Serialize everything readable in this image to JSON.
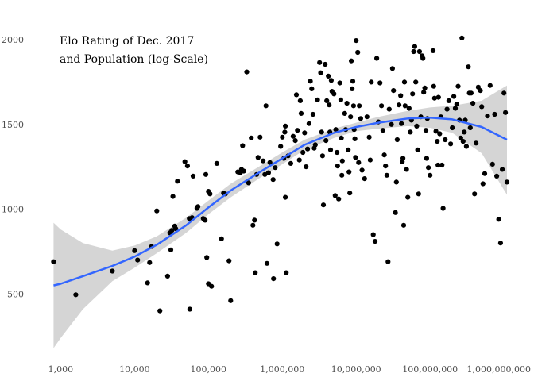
{
  "chart_data": {
    "type": "scatter",
    "title_lines": [
      "Elo Rating of Dec. 2017",
      "and Population (log-Scale)"
    ],
    "xlabel": "",
    "ylabel": "",
    "x_scale": "log10",
    "xlim": [
      700,
      1100000000
    ],
    "ylim": [
      150,
      2150
    ],
    "x_ticks": [
      1000,
      10000,
      100000,
      1000000,
      10000000,
      100000000,
      1000000000
    ],
    "x_tick_labels": [
      "1,000",
      "10,000",
      "100,000",
      "1,000,000",
      "10,000,000",
      "100,000,000",
      "1,000,000,000"
    ],
    "y_ticks": [
      500,
      1000,
      1500,
      2000
    ],
    "y_tick_labels": [
      "500",
      "1000",
      "1500",
      "2000"
    ],
    "grid": false,
    "point_color": "#000000",
    "smooth_color": "#3366ff",
    "band_color": "#bfbfbf",
    "points": [
      [
        800,
        690
      ],
      [
        1600,
        495
      ],
      [
        5000,
        635
      ],
      [
        10000,
        755
      ],
      [
        11000,
        700
      ],
      [
        15000,
        565
      ],
      [
        16000,
        685
      ],
      [
        17000,
        780
      ],
      [
        20000,
        990
      ],
      [
        22000,
        400
      ],
      [
        28000,
        605
      ],
      [
        30000,
        860
      ],
      [
        31000,
        760
      ],
      [
        32000,
        875
      ],
      [
        33000,
        1075
      ],
      [
        35000,
        900
      ],
      [
        36000,
        885
      ],
      [
        38000,
        1165
      ],
      [
        48000,
        1280
      ],
      [
        52000,
        1255
      ],
      [
        55000,
        945
      ],
      [
        56000,
        410
      ],
      [
        60000,
        950
      ],
      [
        62000,
        1195
      ],
      [
        70000,
        1005
      ],
      [
        72000,
        1015
      ],
      [
        85000,
        945
      ],
      [
        90000,
        935
      ],
      [
        92000,
        1205
      ],
      [
        95000,
        715
      ],
      [
        100000,
        1105
      ],
      [
        100000,
        560
      ],
      [
        105000,
        1090
      ],
      [
        110000,
        545
      ],
      [
        130000,
        1270
      ],
      [
        150000,
        825
      ],
      [
        160000,
        1095
      ],
      [
        170000,
        1090
      ],
      [
        190000,
        695
      ],
      [
        200000,
        460
      ],
      [
        250000,
        1220
      ],
      [
        270000,
        1215
      ],
      [
        280000,
        1235
      ],
      [
        290000,
        1375
      ],
      [
        300000,
        1225
      ],
      [
        330000,
        1810
      ],
      [
        350000,
        1155
      ],
      [
        380000,
        1420
      ],
      [
        400000,
        905
      ],
      [
        420000,
        935
      ],
      [
        430000,
        625
      ],
      [
        450000,
        1205
      ],
      [
        470000,
        1305
      ],
      [
        500000,
        1425
      ],
      [
        550000,
        1285
      ],
      [
        580000,
        1205
      ],
      [
        600000,
        1610
      ],
      [
        620000,
        680
      ],
      [
        650000,
        1215
      ],
      [
        680000,
        1275
      ],
      [
        750000,
        1175
      ],
      [
        760000,
        590
      ],
      [
        800000,
        1245
      ],
      [
        850000,
        795
      ],
      [
        950000,
        1370
      ],
      [
        1000000,
        1425
      ],
      [
        1050000,
        1300
      ],
      [
        1080000,
        1455
      ],
      [
        1100000,
        1490
      ],
      [
        1100000,
        1070
      ],
      [
        1130000,
        625
      ],
      [
        1200000,
        1315
      ],
      [
        1300000,
        1270
      ],
      [
        1400000,
        1430
      ],
      [
        1500000,
        1405
      ],
      [
        1550000,
        1675
      ],
      [
        1600000,
        1465
      ],
      [
        1700000,
        1290
      ],
      [
        1750000,
        1640
      ],
      [
        1800000,
        1565
      ],
      [
        1900000,
        1335
      ],
      [
        2000000,
        1450
      ],
      [
        2100000,
        1250
      ],
      [
        2200000,
        1355
      ],
      [
        2300000,
        1505
      ],
      [
        2400000,
        1755
      ],
      [
        2500000,
        1710
      ],
      [
        2600000,
        1560
      ],
      [
        2700000,
        1360
      ],
      [
        2800000,
        1380
      ],
      [
        3000000,
        1645
      ],
      [
        3200000,
        1865
      ],
      [
        3300000,
        1805
      ],
      [
        3400000,
        1455
      ],
      [
        3500000,
        1315
      ],
      [
        3600000,
        1025
      ],
      [
        3800000,
        1855
      ],
      [
        3900000,
        1405
      ],
      [
        4000000,
        1640
      ],
      [
        4200000,
        1785
      ],
      [
        4300000,
        1615
      ],
      [
        4400000,
        1455
      ],
      [
        4500000,
        1350
      ],
      [
        4600000,
        1760
      ],
      [
        4700000,
        1695
      ],
      [
        5000000,
        1680
      ],
      [
        5200000,
        1080
      ],
      [
        5300000,
        1470
      ],
      [
        5500000,
        1335
      ],
      [
        5600000,
        1255
      ],
      [
        5800000,
        1060
      ],
      [
        6000000,
        1745
      ],
      [
        6200000,
        1645
      ],
      [
        6300000,
        1420
      ],
      [
        6400000,
        1200
      ],
      [
        6500000,
        1285
      ],
      [
        7000000,
        1565
      ],
      [
        7200000,
        1470
      ],
      [
        7500000,
        1625
      ],
      [
        7800000,
        1350
      ],
      [
        8000000,
        1220
      ],
      [
        8200000,
        1095
      ],
      [
        8400000,
        1545
      ],
      [
        8600000,
        1875
      ],
      [
        8800000,
        1710
      ],
      [
        9000000,
        1755
      ],
      [
        9200000,
        1610
      ],
      [
        9400000,
        1470
      ],
      [
        9600000,
        1415
      ],
      [
        9800000,
        1305
      ],
      [
        10000000,
        1995
      ],
      [
        10500000,
        1925
      ],
      [
        10800000,
        1275
      ],
      [
        11000000,
        1610
      ],
      [
        11500000,
        1535
      ],
      [
        12000000,
        1230
      ],
      [
        13000000,
        1180
      ],
      [
        14000000,
        1545
      ],
      [
        15000000,
        1425
      ],
      [
        15500000,
        1290
      ],
      [
        16000000,
        1750
      ],
      [
        17000000,
        850
      ],
      [
        18000000,
        810
      ],
      [
        19000000,
        1890
      ],
      [
        20000000,
        1515
      ],
      [
        21000000,
        1745
      ],
      [
        22000000,
        1610
      ],
      [
        23000000,
        1465
      ],
      [
        24000000,
        1320
      ],
      [
        25000000,
        1255
      ],
      [
        26000000,
        1200
      ],
      [
        27000000,
        690
      ],
      [
        28000000,
        1590
      ],
      [
        30000000,
        1500
      ],
      [
        31000000,
        1830
      ],
      [
        32000000,
        1700
      ],
      [
        34000000,
        980
      ],
      [
        35000000,
        1160
      ],
      [
        36000000,
        1410
      ],
      [
        38000000,
        1615
      ],
      [
        40000000,
        1670
      ],
      [
        41000000,
        1505
      ],
      [
        42000000,
        1280
      ],
      [
        43000000,
        1300
      ],
      [
        44000000,
        905
      ],
      [
        45000000,
        1750
      ],
      [
        46000000,
        1610
      ],
      [
        48000000,
        1235
      ],
      [
        50000000,
        1070
      ],
      [
        52000000,
        1595
      ],
      [
        54000000,
        1455
      ],
      [
        56000000,
        1525
      ],
      [
        58000000,
        1680
      ],
      [
        60000000,
        1930
      ],
      [
        62000000,
        1960
      ],
      [
        64000000,
        1750
      ],
      [
        66000000,
        1490
      ],
      [
        68000000,
        1350
      ],
      [
        70000000,
        1090
      ],
      [
        72000000,
        1930
      ],
      [
        75000000,
        1545
      ],
      [
        78000000,
        1905
      ],
      [
        80000000,
        1890
      ],
      [
        82000000,
        1690
      ],
      [
        85000000,
        1715
      ],
      [
        88000000,
        1465
      ],
      [
        90000000,
        1300
      ],
      [
        92000000,
        1535
      ],
      [
        95000000,
        1245
      ],
      [
        100000000,
        1200
      ],
      [
        110000000,
        1935
      ],
      [
        112000000,
        1725
      ],
      [
        115000000,
        1655
      ],
      [
        120000000,
        1460
      ],
      [
        125000000,
        1400
      ],
      [
        128000000,
        1260
      ],
      [
        130000000,
        1660
      ],
      [
        135000000,
        1445
      ],
      [
        140000000,
        1545
      ],
      [
        145000000,
        1260
      ],
      [
        150000000,
        1005
      ],
      [
        160000000,
        1410
      ],
      [
        170000000,
        1590
      ],
      [
        180000000,
        1640
      ],
      [
        190000000,
        1385
      ],
      [
        200000000,
        1480
      ],
      [
        210000000,
        1665
      ],
      [
        220000000,
        1595
      ],
      [
        230000000,
        1620
      ],
      [
        240000000,
        1725
      ],
      [
        250000000,
        1525
      ],
      [
        260000000,
        1420
      ],
      [
        270000000,
        2010
      ],
      [
        280000000,
        1400
      ],
      [
        290000000,
        1455
      ],
      [
        300000000,
        1525
      ],
      [
        310000000,
        1370
      ],
      [
        330000000,
        1840
      ],
      [
        340000000,
        1685
      ],
      [
        350000000,
        1480
      ],
      [
        360000000,
        1685
      ],
      [
        380000000,
        1625
      ],
      [
        400000000,
        1090
      ],
      [
        420000000,
        1390
      ],
      [
        450000000,
        1720
      ],
      [
        480000000,
        1700
      ],
      [
        500000000,
        1605
      ],
      [
        520000000,
        1150
      ],
      [
        550000000,
        1210
      ],
      [
        600000000,
        1550
      ],
      [
        650000000,
        1730
      ],
      [
        700000000,
        1265
      ],
      [
        750000000,
        1560
      ],
      [
        800000000,
        1195
      ],
      [
        850000000,
        940
      ],
      [
        900000000,
        800
      ],
      [
        950000000,
        1235
      ],
      [
        1000000000,
        1685
      ],
      [
        1050000000,
        1570
      ],
      [
        1100000000,
        1160
      ]
    ],
    "smooth": [
      [
        800,
        550
      ],
      [
        1000,
        560
      ],
      [
        2000,
        605
      ],
      [
        5000,
        665
      ],
      [
        10000,
        720
      ],
      [
        20000,
        790
      ],
      [
        50000,
        905
      ],
      [
        100000,
        1010
      ],
      [
        200000,
        1110
      ],
      [
        500000,
        1220
      ],
      [
        1000000,
        1300
      ],
      [
        2000000,
        1380
      ],
      [
        5000000,
        1450
      ],
      [
        10000000,
        1485
      ],
      [
        20000000,
        1510
      ],
      [
        50000000,
        1535
      ],
      [
        100000000,
        1540
      ],
      [
        200000000,
        1530
      ],
      [
        500000000,
        1485
      ],
      [
        1100000000,
        1410
      ]
    ],
    "band_upper": [
      [
        800,
        920
      ],
      [
        1000,
        880
      ],
      [
        2000,
        800
      ],
      [
        5000,
        755
      ],
      [
        10000,
        785
      ],
      [
        20000,
        840
      ],
      [
        50000,
        950
      ],
      [
        100000,
        1050
      ],
      [
        200000,
        1150
      ],
      [
        500000,
        1255
      ],
      [
        1000000,
        1335
      ],
      [
        2000000,
        1410
      ],
      [
        5000000,
        1475
      ],
      [
        10000000,
        1510
      ],
      [
        20000000,
        1545
      ],
      [
        50000000,
        1580
      ],
      [
        100000000,
        1600
      ],
      [
        200000000,
        1610
      ],
      [
        500000000,
        1640
      ],
      [
        1100000000,
        1730
      ]
    ],
    "band_lower": [
      [
        800,
        180
      ],
      [
        1000,
        240
      ],
      [
        2000,
        410
      ],
      [
        5000,
        575
      ],
      [
        10000,
        655
      ],
      [
        20000,
        740
      ],
      [
        50000,
        860
      ],
      [
        100000,
        970
      ],
      [
        200000,
        1070
      ],
      [
        500000,
        1185
      ],
      [
        1000000,
        1265
      ],
      [
        2000000,
        1350
      ],
      [
        5000000,
        1420
      ],
      [
        10000000,
        1460
      ],
      [
        20000000,
        1475
      ],
      [
        50000000,
        1490
      ],
      [
        100000000,
        1480
      ],
      [
        200000000,
        1450
      ],
      [
        500000000,
        1330
      ],
      [
        1100000000,
        1085
      ]
    ]
  }
}
